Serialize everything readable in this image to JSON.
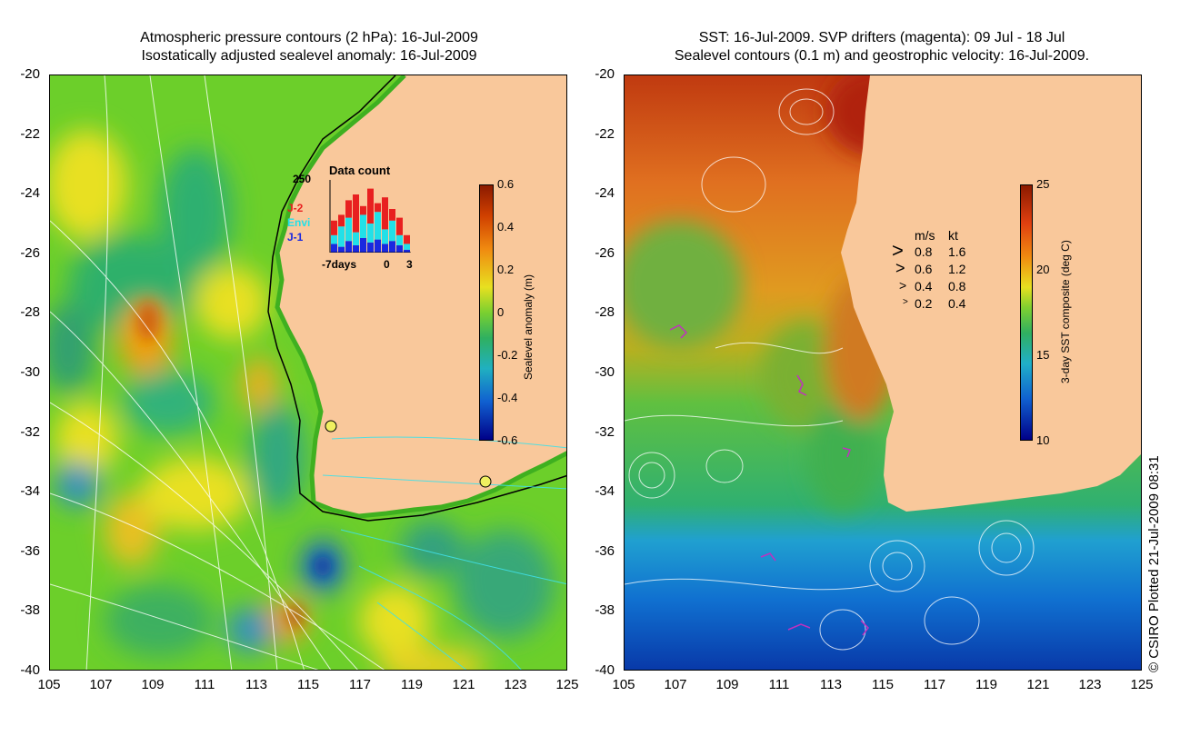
{
  "left_panel": {
    "title_line1": "Atmospheric pressure contours (2 hPa): 16-Jul-2009",
    "title_line2": "Isostatically adjusted sealevel anomaly: 16-Jul-2009",
    "colorbar": {
      "title": "Sealevel anomaly (m)",
      "ticks": [
        "0.6",
        "0.4",
        "0.2",
        "0",
        "-0.2",
        "-0.4",
        "-0.6"
      ],
      "range": [
        -0.6,
        0.6
      ]
    },
    "data_count": {
      "title": "Data count",
      "ymax_label": "250",
      "x_left_label": "-7days",
      "x_mid_label": "0",
      "x_right_label": "3",
      "legend": [
        {
          "label": "J-2",
          "color": "#e82020"
        },
        {
          "label": "Envi",
          "color": "#22e0e8"
        },
        {
          "label": "J-1",
          "color": "#1a28e0"
        }
      ],
      "bars": [
        {
          "j1": 30,
          "envi": 60,
          "j2": 110
        },
        {
          "j1": 20,
          "envi": 90,
          "j2": 130
        },
        {
          "j1": 40,
          "envi": 120,
          "j2": 180
        },
        {
          "j1": 25,
          "envi": 70,
          "j2": 200
        },
        {
          "j1": 50,
          "envi": 130,
          "j2": 160
        },
        {
          "j1": 35,
          "envi": 100,
          "j2": 220
        },
        {
          "j1": 45,
          "envi": 140,
          "j2": 170
        },
        {
          "j1": 30,
          "envi": 80,
          "j2": 190
        },
        {
          "j1": 40,
          "envi": 110,
          "j2": 150
        },
        {
          "j1": 25,
          "envi": 60,
          "j2": 120
        },
        {
          "j1": 10,
          "envi": 30,
          "j2": 60
        }
      ]
    }
  },
  "right_panel": {
    "title_line1": "SST: 16-Jul-2009. SVP drifters (magenta): 09 Jul - 18 Jul",
    "title_line2": "Sealevel contours (0.1 m) and geostrophic velocity: 16-Jul-2009.",
    "colorbar": {
      "title": "3-day SST composite (deg C)",
      "ticks": [
        "25",
        "20",
        "15",
        "10"
      ],
      "range": [
        10,
        25
      ]
    },
    "velocity_legend": {
      "header_ms": "m/s",
      "header_kt": "kt",
      "rows": [
        {
          "ms": "0.8",
          "kt": "1.6"
        },
        {
          "ms": "0.6",
          "kt": "1.2"
        },
        {
          "ms": "0.4",
          "kt": "0.8"
        },
        {
          "ms": "0.2",
          "kt": "0.4"
        }
      ]
    }
  },
  "axes": {
    "lat_ticks": [
      "-20",
      "-22",
      "-24",
      "-26",
      "-28",
      "-30",
      "-32",
      "-34",
      "-36",
      "-38",
      "-40"
    ],
    "lon_ticks": [
      "105",
      "107",
      "109",
      "111",
      "113",
      "115",
      "117",
      "119",
      "121",
      "123",
      "125"
    ],
    "lat_range": [
      -40,
      -20
    ],
    "lon_range": [
      105,
      125
    ]
  },
  "credit": "© CSIRO Plotted 21-Jul-2009 08:31",
  "colors": {
    "land": "#f9c89b",
    "sla_low": "#00008a",
    "sla_high": "#8b1a00",
    "sst_low": "#00008a",
    "sst_high": "#8b1a00"
  }
}
